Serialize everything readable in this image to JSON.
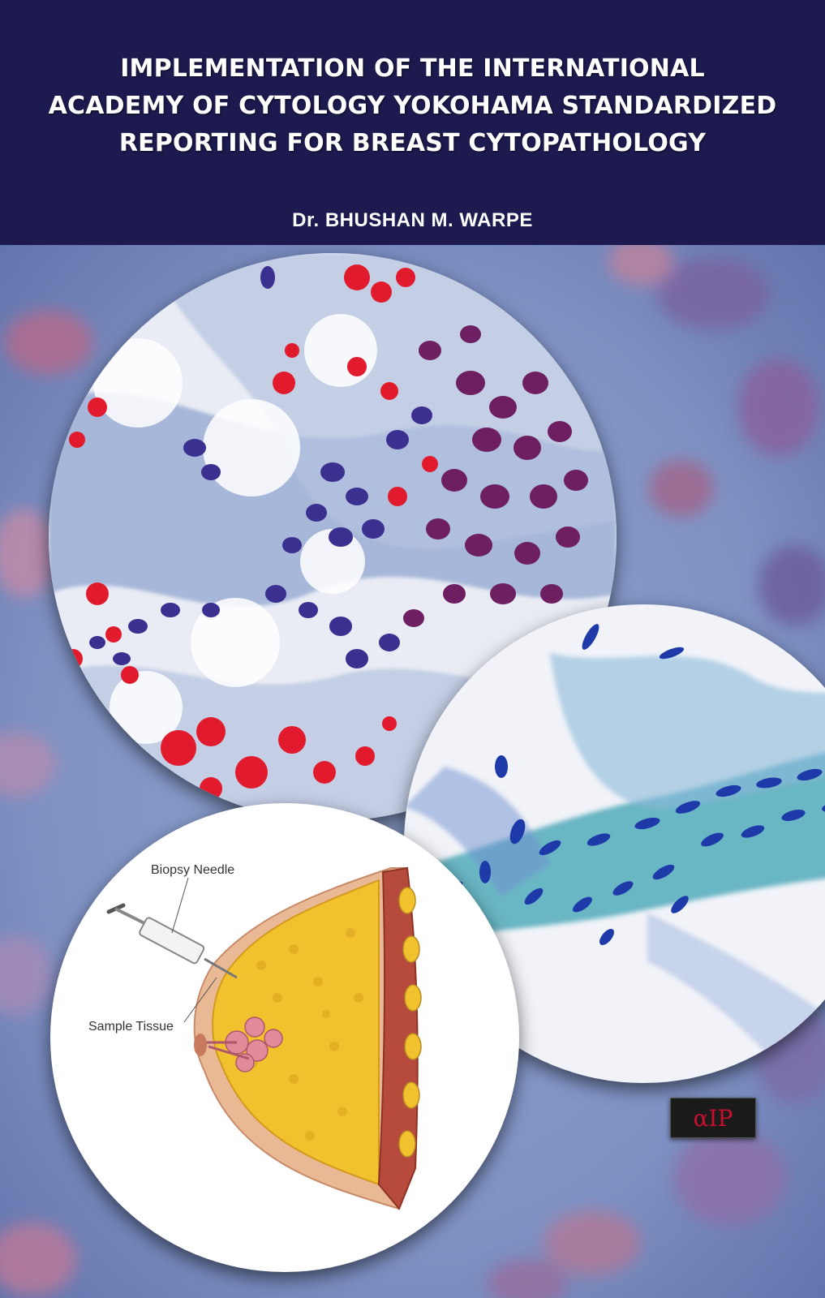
{
  "cover": {
    "title_lines": [
      "IMPLEMENTATION OF THE INTERNATIONAL",
      "ACADEMY OF CYTOLOGY YOKOHAMA STANDARDIZED",
      "REPORTING FOR BREAST CYTOPATHOLOGY"
    ],
    "author": "Dr. BHUSHAN M. WARPE"
  },
  "diagram": {
    "needle_label": "Biopsy Needle",
    "sample_label": "Sample Tissue"
  },
  "publisher_logo": {
    "text": "αIP",
    "icon": "aip-logo"
  },
  "colors": {
    "header_bg": "#1c1a4e",
    "header_text": "#ffffff",
    "logo_red": "#c8102e"
  }
}
